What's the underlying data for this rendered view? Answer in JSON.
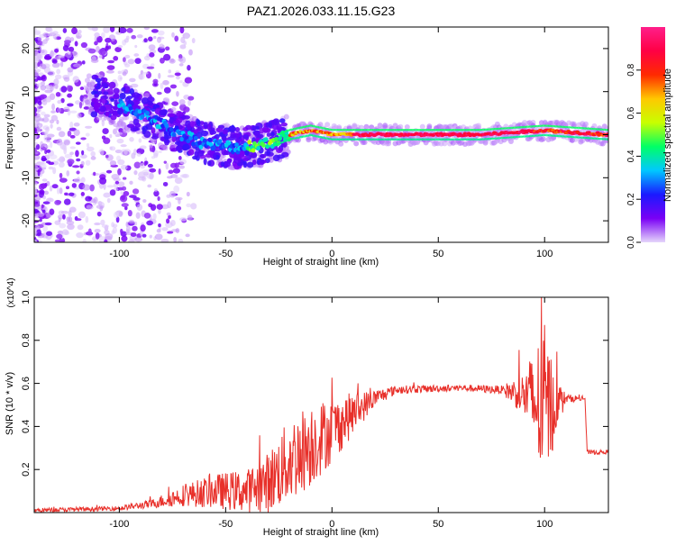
{
  "title": "PAZ1.2026.033.11.15.G23",
  "colors": {
    "line": "#e8302a",
    "frame": "#000000"
  },
  "chart_data": [
    {
      "type": "heatmap",
      "xlabel": "Height of straight line (km)",
      "ylabel": "Frequency (Hz)",
      "xlim": [
        -140,
        130
      ],
      "ylim": [
        -25,
        25
      ],
      "xticks": [
        -100,
        -50,
        0,
        50,
        100
      ],
      "xtick_labels": [
        "-100",
        "-50",
        "0",
        "50",
        "100"
      ],
      "yticks": [
        -20,
        -10,
        0,
        10,
        20
      ],
      "ytick_labels": [
        "-20",
        "-10",
        "0",
        "10",
        "20"
      ],
      "colorbar": {
        "label": "Normalized spectral amplitude",
        "range": [
          0,
          1
        ],
        "ticks": [
          0.0,
          0.2,
          0.4,
          0.6,
          0.8
        ],
        "tick_labels": [
          "0.0",
          "0.2",
          "0.4",
          "0.6",
          "0.8"
        ],
        "colormap": [
          "#e5d6fb",
          "#7a00f5",
          "#1a1aff",
          "#00c8ff",
          "#00ff66",
          "#c8ff00",
          "#ffc800",
          "#ff2a00",
          "#ff0044",
          "#ff1f8a"
        ]
      },
      "ridge": [
        {
          "x": -110,
          "f": 9
        },
        {
          "x": -90,
          "f": 5
        },
        {
          "x": -75,
          "f": 1
        },
        {
          "x": -60,
          "f": -2
        },
        {
          "x": -45,
          "f": -3
        },
        {
          "x": -30,
          "f": -2
        },
        {
          "x": -20,
          "f": 0
        },
        {
          "x": -10,
          "f": 1
        },
        {
          "x": 0,
          "f": 0
        },
        {
          "x": 30,
          "f": 0
        },
        {
          "x": 70,
          "f": 0
        },
        {
          "x": 100,
          "f": 1
        },
        {
          "x": 130,
          "f": 0
        }
      ]
    },
    {
      "type": "line",
      "xlabel": "Height of straight line (km)",
      "ylabel": "SNR (10 * v/v)",
      "scale_label": "(x10^4)",
      "xlim": [
        -140,
        130
      ],
      "ylim": [
        0,
        1.0
      ],
      "xticks": [
        -100,
        -50,
        0,
        50,
        100
      ],
      "xtick_labels": [
        "-100",
        "-50",
        "0",
        "50",
        "100"
      ],
      "yticks": [
        0.2,
        0.4,
        0.6,
        0.8,
        1.0
      ],
      "ytick_labels": [
        "0.2",
        "0.4",
        "0.6",
        "0.8",
        "1.0"
      ],
      "series": [
        {
          "name": "SNR",
          "envelope": [
            {
              "x": -140,
              "mean": 0.01,
              "amp": 0.01
            },
            {
              "x": -100,
              "mean": 0.02,
              "amp": 0.01
            },
            {
              "x": -85,
              "mean": 0.04,
              "amp": 0.02
            },
            {
              "x": -70,
              "mean": 0.08,
              "amp": 0.05
            },
            {
              "x": -55,
              "mean": 0.1,
              "amp": 0.08
            },
            {
              "x": -40,
              "mean": 0.1,
              "amp": 0.1
            },
            {
              "x": -30,
              "mean": 0.14,
              "amp": 0.14
            },
            {
              "x": -20,
              "mean": 0.24,
              "amp": 0.2
            },
            {
              "x": -10,
              "mean": 0.32,
              "amp": 0.2
            },
            {
              "x": 0,
              "mean": 0.38,
              "amp": 0.15
            },
            {
              "x": 10,
              "mean": 0.46,
              "amp": 0.1
            },
            {
              "x": 20,
              "mean": 0.53,
              "amp": 0.04
            },
            {
              "x": 30,
              "mean": 0.57,
              "amp": 0.02
            },
            {
              "x": 60,
              "mean": 0.58,
              "amp": 0.015
            },
            {
              "x": 80,
              "mean": 0.57,
              "amp": 0.02
            },
            {
              "x": 90,
              "mean": 0.55,
              "amp": 0.1
            },
            {
              "x": 100,
              "mean": 0.48,
              "amp": 0.4
            },
            {
              "x": 105,
              "mean": 0.5,
              "amp": 0.15
            },
            {
              "x": 110,
              "mean": 0.53,
              "amp": 0.02
            },
            {
              "x": 119,
              "mean": 0.53,
              "amp": 0.01
            },
            {
              "x": 120,
              "mean": 0.28,
              "amp": 0.01
            },
            {
              "x": 130,
              "mean": 0.28,
              "amp": 0.01
            }
          ]
        }
      ]
    }
  ]
}
